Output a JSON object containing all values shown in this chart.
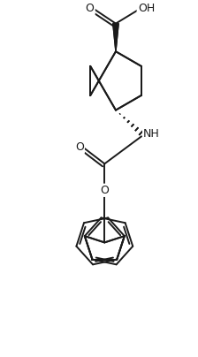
{
  "background_color": "#ffffff",
  "line_color": "#1a1a1a",
  "line_width": 1.4,
  "text_color": "#1a1a1a",
  "font_size": 8.5,
  "figsize": [
    2.24,
    4.04
  ],
  "dpi": 100,
  "xlim": [
    -3.5,
    3.5
  ],
  "ylim": [
    -7.5,
    5.0
  ]
}
